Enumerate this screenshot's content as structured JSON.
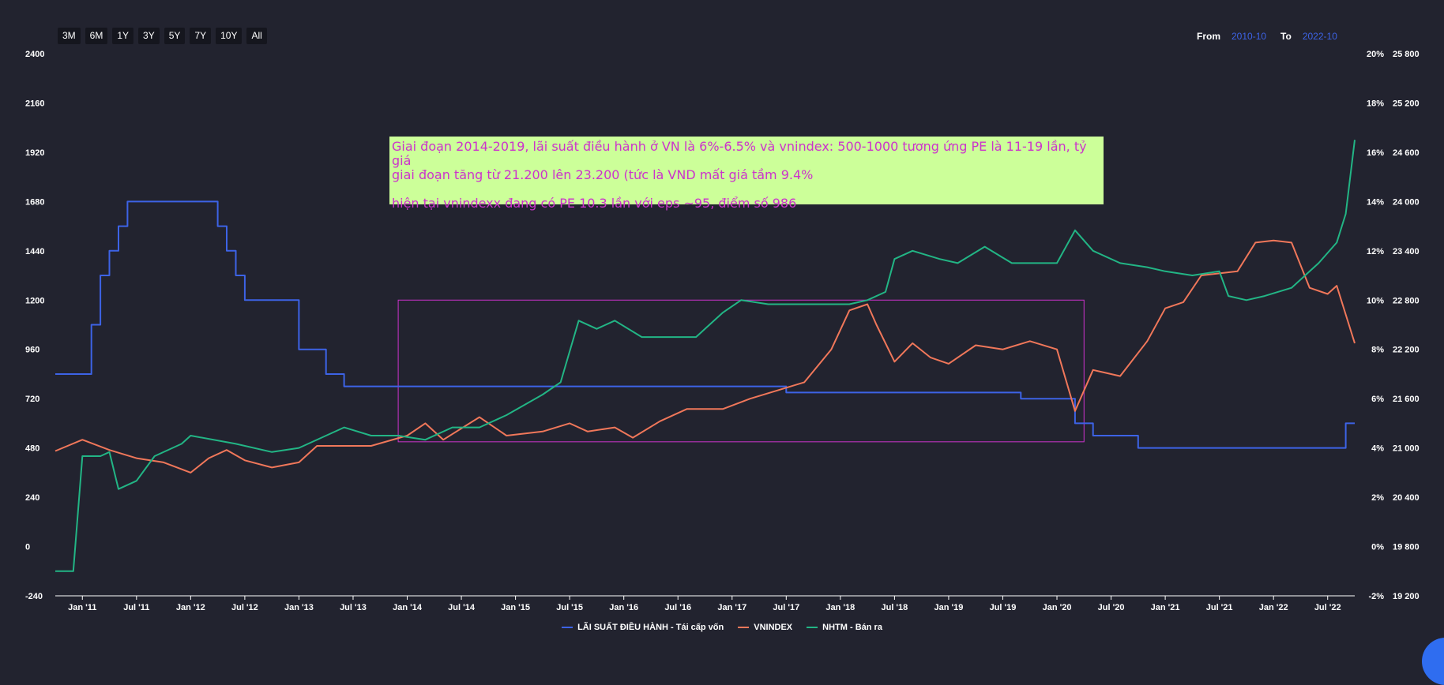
{
  "range_buttons": [
    "3M",
    "6M",
    "1Y",
    "3Y",
    "5Y",
    "7Y",
    "10Y",
    "All"
  ],
  "period": {
    "from_label": "From",
    "from_value": "2010-10",
    "to_label": "To",
    "to_value": "2022-10"
  },
  "annotation": {
    "line1": "Giai đoạn 2014-2019, lãi suất điều hành ở VN là 6%-6.5% và vnindex: 500-1000 tương ứng PE là 11-19 lần, tỷ giá",
    "line2": "giai đoạn tăng từ 21.200 lên 23.200 (tức là VND mất giá tầm 9.4%",
    "line3": "hiện tại vnindexx đang có PE 10.3 lần với eps ~95, điểm số 986"
  },
  "colors": {
    "rate": "#3d63e6",
    "vnindex": "#f0775a",
    "nhtm": "#22b585",
    "box": "#cc33cc",
    "grid_text": "#ffffff"
  },
  "chart_data": {
    "type": "line",
    "x_ticks": [
      "Jan '11",
      "Jul '11",
      "Jan '12",
      "Jul '12",
      "Jan '13",
      "Jul '13",
      "Jan '14",
      "Jul '14",
      "Jan '15",
      "Jul '15",
      "Jan '16",
      "Jul '16",
      "Jan '17",
      "Jul '17",
      "Jan '18",
      "Jul '18",
      "Jan '19",
      "Jul '19",
      "Jan '20",
      "Jul '20",
      "Jan '21",
      "Jul '21",
      "Jan '22",
      "Jul '22"
    ],
    "left_axis": {
      "ticks": [
        "2400",
        "2160",
        "1920",
        "1680",
        "1440",
        "1200",
        "960",
        "720",
        "480",
        "240",
        "0",
        "-240"
      ],
      "range": [
        -240,
        2400
      ]
    },
    "right_axis_pct": {
      "ticks": [
        "20%",
        "18%",
        "16%",
        "14%",
        "12%",
        "10%",
        "8%",
        "6%",
        "4%",
        "2%",
        "0%",
        "-2%"
      ],
      "range": [
        -2,
        20
      ]
    },
    "right_axis_fx": {
      "ticks": [
        "25 800",
        "25 200",
        "24 600",
        "24 000",
        "23 400",
        "22 800",
        "22 200",
        "21 600",
        "21 000",
        "20 400",
        "19 800",
        "19 200"
      ],
      "range": [
        19200,
        25800
      ]
    },
    "x_range": [
      "2010-10",
      "2022-10"
    ],
    "grid": false,
    "legend_position": "bottom",
    "series": [
      {
        "name": "LÃI SUẤT ĐIỀU HÀNH - Tái cấp vốn",
        "axis": "pct",
        "step": true,
        "points": [
          [
            "2010-10",
            7
          ],
          [
            "2011-01",
            7
          ],
          [
            "2011-02",
            9
          ],
          [
            "2011-03",
            11
          ],
          [
            "2011-04",
            12
          ],
          [
            "2011-05",
            13
          ],
          [
            "2011-06",
            14
          ],
          [
            "2011-10",
            14
          ],
          [
            "2012-03",
            14
          ],
          [
            "2012-04",
            13
          ],
          [
            "2012-05",
            12
          ],
          [
            "2012-06",
            11
          ],
          [
            "2012-07",
            10
          ],
          [
            "2012-12",
            10
          ],
          [
            "2013-01",
            8
          ],
          [
            "2013-03",
            8
          ],
          [
            "2013-04",
            7
          ],
          [
            "2013-05",
            7
          ],
          [
            "2013-06",
            6.5
          ],
          [
            "2014-03",
            6.5
          ],
          [
            "2014-03",
            6.5
          ],
          [
            "2017-07",
            6.5
          ],
          [
            "2017-07",
            6.25
          ],
          [
            "2019-09",
            6.25
          ],
          [
            "2019-09",
            6
          ],
          [
            "2020-03",
            6
          ],
          [
            "2020-03",
            5
          ],
          [
            "2020-05",
            5
          ],
          [
            "2020-05",
            4.5
          ],
          [
            "2020-10",
            4.5
          ],
          [
            "2020-10",
            4
          ],
          [
            "2022-09",
            4
          ],
          [
            "2022-09",
            5
          ],
          [
            "2022-10",
            5
          ]
        ]
      },
      {
        "name": "VNINDEX",
        "axis": "left",
        "points": [
          [
            "2010-10",
            465
          ],
          [
            "2011-01",
            520
          ],
          [
            "2011-04",
            470
          ],
          [
            "2011-07",
            430
          ],
          [
            "2011-10",
            410
          ],
          [
            "2012-01",
            360
          ],
          [
            "2012-03",
            430
          ],
          [
            "2012-05",
            470
          ],
          [
            "2012-07",
            420
          ],
          [
            "2012-10",
            385
          ],
          [
            "2013-01",
            410
          ],
          [
            "2013-03",
            490
          ],
          [
            "2013-06",
            490
          ],
          [
            "2013-09",
            490
          ],
          [
            "2014-01",
            540
          ],
          [
            "2014-03",
            600
          ],
          [
            "2014-05",
            520
          ],
          [
            "2014-09",
            630
          ],
          [
            "2014-12",
            540
          ],
          [
            "2015-04",
            560
          ],
          [
            "2015-07",
            600
          ],
          [
            "2015-09",
            560
          ],
          [
            "2015-12",
            580
          ],
          [
            "2016-02",
            530
          ],
          [
            "2016-05",
            610
          ],
          [
            "2016-08",
            670
          ],
          [
            "2016-12",
            670
          ],
          [
            "2017-03",
            720
          ],
          [
            "2017-06",
            760
          ],
          [
            "2017-09",
            800
          ],
          [
            "2017-12",
            960
          ],
          [
            "2018-02",
            1150
          ],
          [
            "2018-04",
            1180
          ],
          [
            "2018-05",
            1080
          ],
          [
            "2018-07",
            900
          ],
          [
            "2018-09",
            990
          ],
          [
            "2018-11",
            920
          ],
          [
            "2019-01",
            890
          ],
          [
            "2019-04",
            980
          ],
          [
            "2019-07",
            960
          ],
          [
            "2019-10",
            1000
          ],
          [
            "2020-01",
            960
          ],
          [
            "2020-03",
            660
          ],
          [
            "2020-05",
            860
          ],
          [
            "2020-08",
            830
          ],
          [
            "2020-11",
            1000
          ],
          [
            "2021-01",
            1160
          ],
          [
            "2021-03",
            1190
          ],
          [
            "2021-05",
            1320
          ],
          [
            "2021-07",
            1330
          ],
          [
            "2021-09",
            1340
          ],
          [
            "2021-11",
            1480
          ],
          [
            "2022-01",
            1490
          ],
          [
            "2022-03",
            1480
          ],
          [
            "2022-05",
            1260
          ],
          [
            "2022-07",
            1230
          ],
          [
            "2022-08",
            1270
          ],
          [
            "2022-09",
            1130
          ],
          [
            "2022-10",
            990
          ]
        ]
      },
      {
        "name": "NHTM - Bán ra",
        "axis": "fx",
        "points": [
          [
            "2010-10",
            19500
          ],
          [
            "2010-12",
            19500
          ],
          [
            "2011-01",
            20900
          ],
          [
            "2011-03",
            20900
          ],
          [
            "2011-04",
            20950
          ],
          [
            "2011-05",
            20500
          ],
          [
            "2011-07",
            20600
          ],
          [
            "2011-09",
            20900
          ],
          [
            "2011-12",
            21050
          ],
          [
            "2012-01",
            21150
          ],
          [
            "2012-06",
            21050
          ],
          [
            "2012-10",
            20950
          ],
          [
            "2013-01",
            21000
          ],
          [
            "2013-06",
            21250
          ],
          [
            "2013-09",
            21150
          ],
          [
            "2013-12",
            21150
          ],
          [
            "2014-03",
            21100
          ],
          [
            "2014-06",
            21250
          ],
          [
            "2014-09",
            21250
          ],
          [
            "2014-12",
            21400
          ],
          [
            "2015-04",
            21650
          ],
          [
            "2015-06",
            21800
          ],
          [
            "2015-08",
            22550
          ],
          [
            "2015-10",
            22450
          ],
          [
            "2015-12",
            22550
          ],
          [
            "2016-03",
            22350
          ],
          [
            "2016-06",
            22350
          ],
          [
            "2016-09",
            22350
          ],
          [
            "2016-12",
            22650
          ],
          [
            "2017-02",
            22800
          ],
          [
            "2017-05",
            22750
          ],
          [
            "2017-08",
            22750
          ],
          [
            "2017-11",
            22750
          ],
          [
            "2018-02",
            22750
          ],
          [
            "2018-04",
            22800
          ],
          [
            "2018-06",
            22900
          ],
          [
            "2018-07",
            23300
          ],
          [
            "2018-09",
            23400
          ],
          [
            "2018-12",
            23300
          ],
          [
            "2019-02",
            23250
          ],
          [
            "2019-05",
            23450
          ],
          [
            "2019-08",
            23250
          ],
          [
            "2019-11",
            23250
          ],
          [
            "2020-01",
            23250
          ],
          [
            "2020-03",
            23650
          ],
          [
            "2020-05",
            23400
          ],
          [
            "2020-08",
            23250
          ],
          [
            "2020-11",
            23200
          ],
          [
            "2021-01",
            23150
          ],
          [
            "2021-04",
            23100
          ],
          [
            "2021-07",
            23150
          ],
          [
            "2021-08",
            22850
          ],
          [
            "2021-10",
            22800
          ],
          [
            "2021-12",
            22850
          ],
          [
            "2022-03",
            22950
          ],
          [
            "2022-05",
            23150
          ],
          [
            "2022-06",
            23250
          ],
          [
            "2022-08",
            23500
          ],
          [
            "2022-09",
            23850
          ],
          [
            "2022-10",
            24750
          ]
        ]
      }
    ]
  }
}
